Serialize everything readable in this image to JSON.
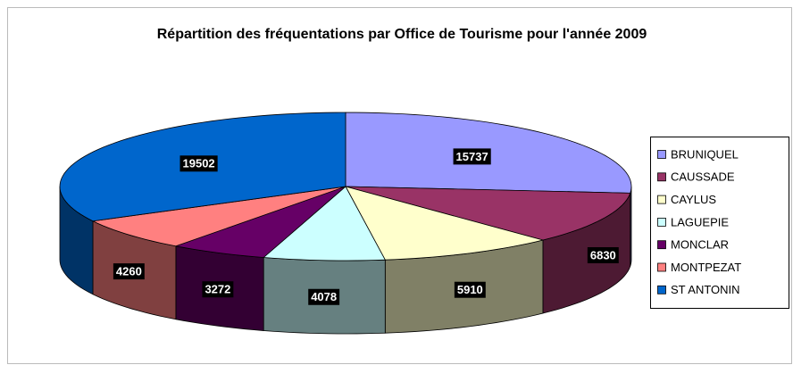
{
  "chart_data": {
    "type": "pie3d",
    "title": "Répartition des fréquentations par Office de Tourisme pour l'année 2009",
    "categories": [
      "BRUNIQUEL",
      "CAUSSADE",
      "CAYLUS",
      "LAGUEPIE",
      "MONCLAR",
      "MONTPEZAT",
      "ST ANTONIN"
    ],
    "values": [
      15737,
      6830,
      5910,
      4078,
      3272,
      4260,
      19502
    ],
    "colors": [
      "#9999ff",
      "#993366",
      "#ffffcc",
      "#ccffff",
      "#660066",
      "#ff8080",
      "#0066cc"
    ]
  }
}
